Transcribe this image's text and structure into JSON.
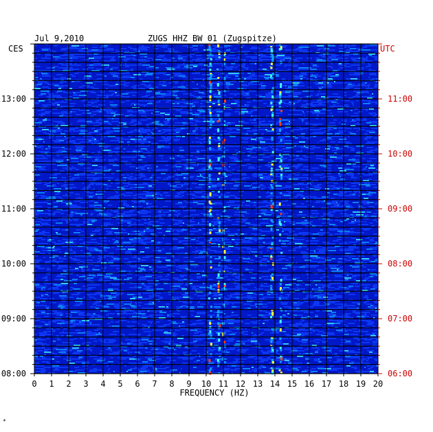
{
  "header": {
    "date": "Jul 9,2010",
    "station": "ZUGS HHZ BW 01 (Zugspitze)",
    "left_zone": "CES",
    "right_zone": "UTC"
  },
  "footer_mark": "*",
  "colors": {
    "background": "#0018c8",
    "grid": "#000000",
    "utc_text": "#cc0000",
    "text": "#000000",
    "spectrum_palette": [
      "#0018c8",
      "#1040ff",
      "#10a0ff",
      "#40ffff",
      "#ffff40",
      "#ff4010"
    ]
  },
  "chart_data": {
    "type": "heatmap",
    "title": "ZUGS HHZ BW 01 (Zugspitze)",
    "date": "Jul 9,2010",
    "xlabel": "FREQUENCY (HZ)",
    "xlim": [
      0,
      20
    ],
    "x_ticks": [
      "0",
      "1",
      "2",
      "3",
      "4",
      "5",
      "6",
      "7",
      "8",
      "9",
      "10",
      "11",
      "12",
      "13",
      "14",
      "15",
      "16",
      "17",
      "18",
      "19",
      "20"
    ],
    "ces_time_range": [
      "08:00",
      "14:00"
    ],
    "utc_time_range": [
      "06:00",
      "12:00"
    ],
    "left_ticks": [
      "08:00",
      "09:00",
      "10:00",
      "11:00",
      "12:00",
      "13:00"
    ],
    "right_ticks": [
      "06:00",
      "07:00",
      "08:00",
      "09:00",
      "10:00",
      "11:00"
    ],
    "energy_bands_hz": [
      {
        "freq": 10.2,
        "strength": 0.9
      },
      {
        "freq": 10.7,
        "strength": 0.7
      },
      {
        "freq": 11.0,
        "strength": 0.6
      },
      {
        "freq": 13.8,
        "strength": 0.8
      },
      {
        "freq": 14.3,
        "strength": 0.6
      }
    ]
  }
}
